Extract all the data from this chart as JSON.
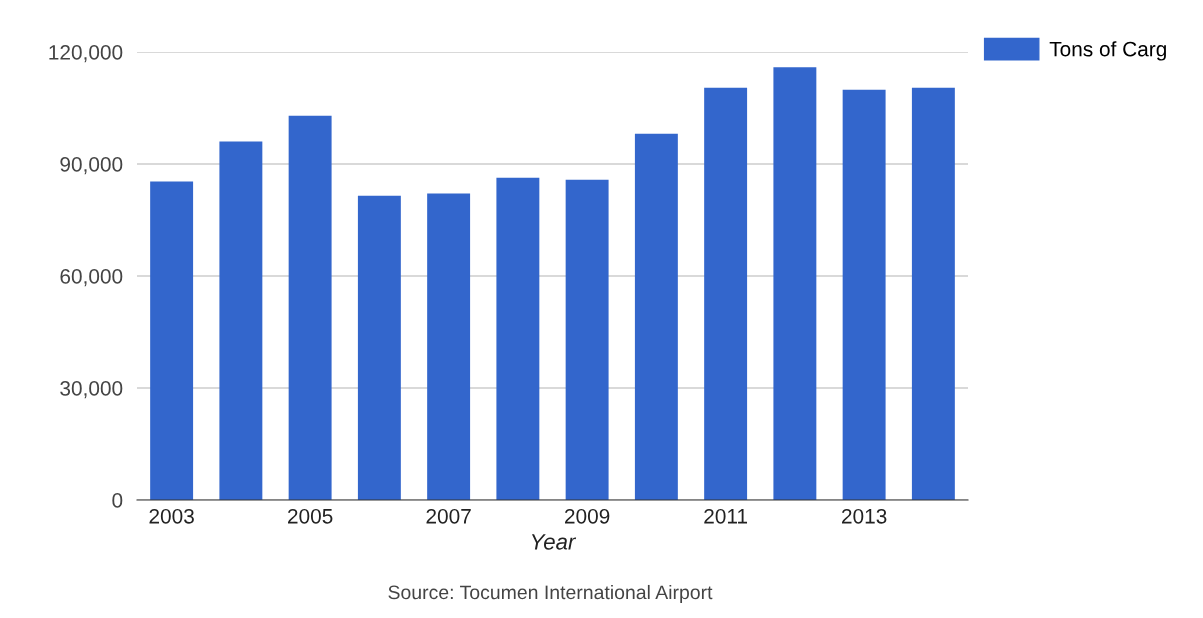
{
  "chart_data": {
    "type": "bar",
    "xlabel": "Year",
    "categories": [
      "2003",
      null,
      "2005",
      null,
      "2007",
      null,
      "2009",
      null,
      "2011",
      null,
      "2013",
      null
    ],
    "series": [
      {
        "name": "Tons of Carg",
        "color": "#3366cc",
        "values": [
          85300,
          96000,
          102900,
          81500,
          82100,
          86300,
          85800,
          98100,
          110400,
          115900,
          109900,
          110400
        ]
      }
    ],
    "ylim": [
      0,
      120000
    ],
    "yticks": [
      {
        "value": 0,
        "label": "0"
      },
      {
        "value": 30000,
        "label": "30,000"
      },
      {
        "value": 60000,
        "label": "60,000"
      },
      {
        "value": 90000,
        "label": "90,000"
      },
      {
        "value": 120000,
        "label": "120,000"
      }
    ],
    "grid": "y",
    "legend": "top right",
    "annotations": [
      "Source: Tocumen International Airport"
    ]
  }
}
